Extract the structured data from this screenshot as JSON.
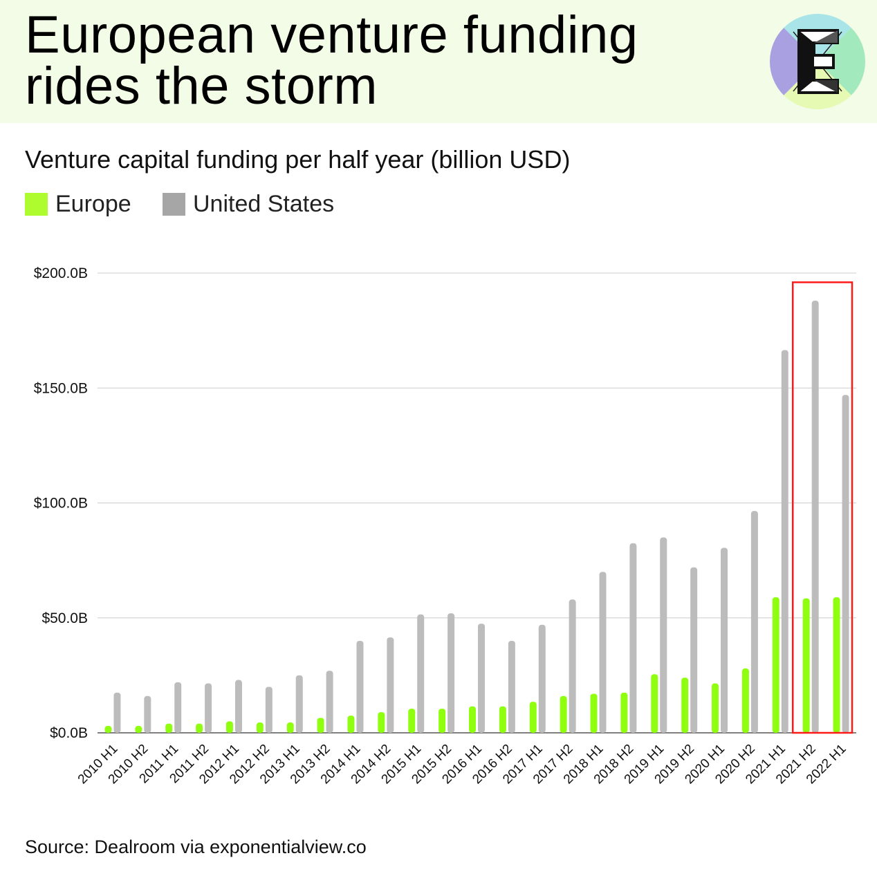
{
  "header": {
    "title": "European venture funding rides the storm",
    "logo_letter": "E",
    "background_color": "#f2fce6",
    "logo_colors": [
      "#a8e4e8",
      "#a2e9bd",
      "#e6fab4",
      "#a8a0e0"
    ]
  },
  "chart_data": {
    "type": "bar",
    "title": "Venture capital funding per half year (billion USD)",
    "xlabel": "",
    "ylabel": "",
    "ylim": [
      0,
      200
    ],
    "yticks": [
      "$0.0B",
      "$50.0B",
      "$100.0B",
      "$150.0B",
      "$200.0B"
    ],
    "grid": true,
    "legend_position": "top-left",
    "categories": [
      "2010 H1",
      "2010 H2",
      "2011 H1",
      "2011 H2",
      "2012 H1",
      "2012 H2",
      "2013 H1",
      "2013 H2",
      "2014 H1",
      "2014 H2",
      "2015 H1",
      "2015 H2",
      "2016 H1",
      "2016 H2",
      "2017 H1",
      "2017 H2",
      "2018 H1",
      "2018 H2",
      "2019 H1",
      "2019 H2",
      "2020 H1",
      "2020 H2",
      "2021 H1",
      "2021 H2",
      "2022 H1"
    ],
    "series": [
      {
        "name": "Europe",
        "color": "#8fff0f",
        "values": [
          3,
          3,
          4,
          4,
          5,
          4.5,
          4.5,
          6.5,
          7.5,
          9,
          10.5,
          10.5,
          11.5,
          11.5,
          13.5,
          16,
          17,
          17.5,
          25.5,
          24,
          21.5,
          28,
          59,
          58.5,
          59
        ]
      },
      {
        "name": "United States",
        "color": "#bcbcbc",
        "values": [
          17.5,
          16,
          22,
          21.5,
          23,
          20,
          25,
          27,
          40,
          41.5,
          51.5,
          52,
          47.5,
          40,
          47,
          58,
          70,
          82.5,
          85,
          72,
          80.5,
          96.5,
          166.5,
          188,
          147
        ]
      }
    ],
    "highlight": {
      "categories": [
        "2021 H2",
        "2022 H1"
      ],
      "color": "#ff1a1a"
    }
  },
  "legend": {
    "items": [
      {
        "label": "Europe",
        "color": "#aefc2e"
      },
      {
        "label": "United States",
        "color": "#a6a6a6"
      }
    ]
  },
  "footer": {
    "source": "Source: Dealroom via exponentialview.co"
  }
}
